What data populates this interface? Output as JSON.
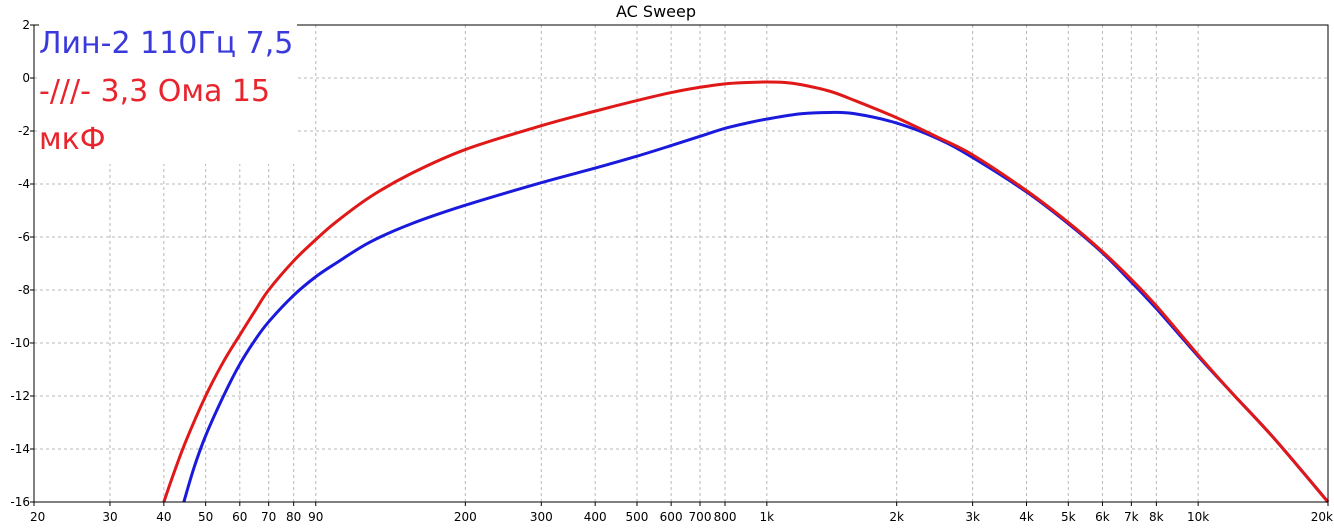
{
  "chart_data": {
    "type": "line",
    "title": "AC Sweep",
    "xscale": "log",
    "xlim": [
      20,
      20000
    ],
    "ylim": [
      -16,
      2
    ],
    "x_ticks": [
      {
        "v": 20,
        "label": "20"
      },
      {
        "v": 30,
        "label": "30"
      },
      {
        "v": 40,
        "label": "40"
      },
      {
        "v": 50,
        "label": "50"
      },
      {
        "v": 60,
        "label": "60"
      },
      {
        "v": 70,
        "label": "70"
      },
      {
        "v": 80,
        "label": "80"
      },
      {
        "v": 90,
        "label": "90"
      },
      {
        "v": 200,
        "label": "200"
      },
      {
        "v": 300,
        "label": "300"
      },
      {
        "v": 400,
        "label": "400"
      },
      {
        "v": 500,
        "label": "500"
      },
      {
        "v": 600,
        "label": "600"
      },
      {
        "v": 700,
        "label": "700"
      },
      {
        "v": 800,
        "label": "800"
      },
      {
        "v": 1000,
        "label": "1k"
      },
      {
        "v": 2000,
        "label": "2k"
      },
      {
        "v": 3000,
        "label": "3k"
      },
      {
        "v": 4000,
        "label": "4k"
      },
      {
        "v": 5000,
        "label": "5k"
      },
      {
        "v": 6000,
        "label": "6k"
      },
      {
        "v": 7000,
        "label": "7k"
      },
      {
        "v": 8000,
        "label": "8k"
      },
      {
        "v": 10000,
        "label": "10k"
      },
      {
        "v": 20000,
        "label": "20k"
      }
    ],
    "y_ticks": [
      {
        "v": 2,
        "label": "2"
      },
      {
        "v": 0,
        "label": "0"
      },
      {
        "v": -2,
        "label": "-2"
      },
      {
        "v": -4,
        "label": "-4"
      },
      {
        "v": -6,
        "label": "-6"
      },
      {
        "v": -8,
        "label": "-8"
      },
      {
        "v": -10,
        "label": "-10"
      },
      {
        "v": -12,
        "label": "-12"
      },
      {
        "v": -14,
        "label": "-14"
      },
      {
        "v": -16,
        "label": "-16"
      }
    ],
    "grid": true,
    "legend_placement": "top-left",
    "legend_lines": [
      {
        "text": "Лин-2 110Гц 7,5",
        "color": "#3a3adc"
      },
      {
        "text": "-///- 3,3 Ома 15",
        "color": "#e8242c"
      },
      {
        "text": "мкФ",
        "color": "#e8242c"
      }
    ],
    "series": [
      {
        "color": "#1a1adc",
        "x": [
          44.5,
          47,
          50,
          55,
          60,
          65,
          70,
          80,
          90,
          100,
          120,
          150,
          200,
          300,
          400,
          500,
          600,
          700,
          800,
          900,
          1000,
          1200,
          1400,
          1600,
          2000,
          2500,
          3000,
          4000,
          5000,
          6000,
          7000,
          8000,
          10000,
          12000,
          15000,
          20000
        ],
        "y": [
          -16.0,
          -14.7,
          -13.5,
          -12.0,
          -10.8,
          -9.9,
          -9.2,
          -8.2,
          -7.5,
          -7.0,
          -6.2,
          -5.5,
          -4.8,
          -3.95,
          -3.4,
          -2.95,
          -2.55,
          -2.2,
          -1.9,
          -1.7,
          -1.55,
          -1.35,
          -1.3,
          -1.35,
          -1.7,
          -2.3,
          -3.0,
          -4.3,
          -5.5,
          -6.6,
          -7.7,
          -8.7,
          -10.5,
          -11.9,
          -13.6,
          -16.0
        ]
      },
      {
        "color": "#e01818",
        "x": [
          40,
          42,
          45,
          50,
          55,
          60,
          65,
          70,
          80,
          90,
          100,
          120,
          150,
          200,
          300,
          400,
          500,
          600,
          700,
          800,
          900,
          1000,
          1100,
          1200,
          1400,
          1600,
          2000,
          2500,
          3000,
          4000,
          5000,
          6000,
          7000,
          8000,
          10000,
          12000,
          15000,
          20000
        ],
        "y": [
          -16.0,
          -15.0,
          -13.7,
          -12.0,
          -10.7,
          -9.7,
          -8.8,
          -8.0,
          -6.9,
          -6.1,
          -5.45,
          -4.5,
          -3.6,
          -2.7,
          -1.8,
          -1.25,
          -0.85,
          -0.55,
          -0.35,
          -0.22,
          -0.17,
          -0.15,
          -0.17,
          -0.25,
          -0.5,
          -0.85,
          -1.5,
          -2.25,
          -2.9,
          -4.25,
          -5.45,
          -6.55,
          -7.6,
          -8.6,
          -10.45,
          -11.9,
          -13.6,
          -16.0
        ]
      }
    ]
  }
}
